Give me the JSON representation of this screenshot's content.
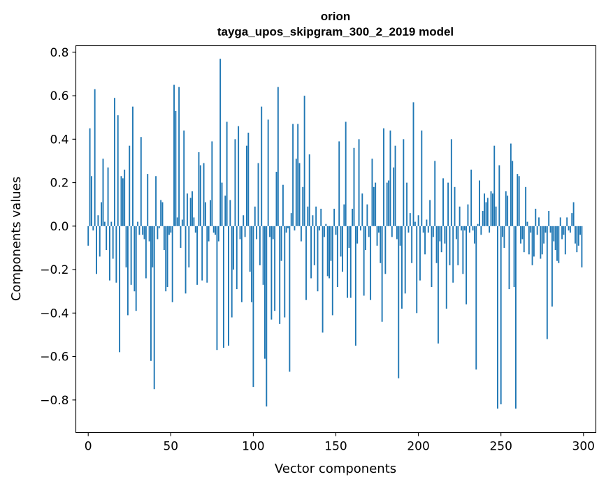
{
  "chart_data": {
    "type": "bar",
    "title": "orion",
    "subtitle": "tayga_upos_skipgram_300_2_2019 model",
    "xlabel": "Vector components",
    "ylabel": "Components values",
    "xlim": [
      -7.5,
      307.5
    ],
    "ylim": [
      -0.95,
      0.83
    ],
    "xticks": [
      0,
      50,
      100,
      150,
      200,
      250,
      300
    ],
    "xtick_labels": [
      "0",
      "50",
      "100",
      "150",
      "200",
      "250",
      "300"
    ],
    "yticks": [
      0.8,
      0.6,
      0.4,
      0.2,
      0.0,
      -0.2,
      -0.4,
      -0.6,
      -0.8
    ],
    "ytick_labels": [
      "0.8",
      "0.6",
      "0.4",
      "0.2",
      "0.0",
      "−0.2",
      "−0.4",
      "−0.6",
      "−0.8"
    ],
    "grid": false,
    "bar_color": "#1f77b4",
    "values": [
      -0.09,
      0.45,
      0.23,
      -0.02,
      0.63,
      -0.22,
      0.05,
      -0.14,
      0.11,
      0.31,
      0.02,
      -0.11,
      0.27,
      -0.25,
      0.02,
      -0.15,
      0.59,
      -0.26,
      0.51,
      -0.58,
      0.23,
      0.22,
      0.26,
      -0.19,
      -0.41,
      0.37,
      -0.27,
      0.55,
      -0.3,
      -0.39,
      0.02,
      -0.04,
      0.41,
      -0.04,
      -0.06,
      -0.24,
      0.24,
      -0.07,
      -0.62,
      -0.19,
      -0.75,
      0.23,
      -0.06,
      -0.01,
      0.12,
      0.11,
      -0.11,
      -0.3,
      -0.28,
      -0.04,
      -0.03,
      -0.35,
      0.65,
      0.53,
      0.04,
      0.64,
      -0.1,
      0.03,
      0.44,
      -0.31,
      0.15,
      -0.19,
      0.13,
      0.16,
      0.04,
      -0.03,
      -0.27,
      0.34,
      0.28,
      -0.25,
      0.29,
      0.11,
      -0.26,
      -0.07,
      0.12,
      0.39,
      -0.03,
      -0.04,
      -0.57,
      -0.07,
      0.77,
      0.2,
      -0.56,
      0.14,
      0.48,
      -0.55,
      0.12,
      -0.42,
      -0.2,
      0.4,
      -0.29,
      0.46,
      -0.06,
      -0.35,
      0.05,
      -0.05,
      0.37,
      0.43,
      -0.21,
      -0.35,
      -0.74,
      0.09,
      -0.06,
      0.29,
      -0.18,
      0.55,
      -0.27,
      -0.61,
      -0.83,
      0.49,
      -0.05,
      -0.43,
      -0.06,
      -0.39,
      0.25,
      0.64,
      -0.45,
      -0.16,
      0.19,
      -0.42,
      -0.03,
      -0.01,
      -0.67,
      0.06,
      0.47,
      -0.02,
      0.31,
      0.47,
      0.29,
      -0.07,
      0.18,
      0.6,
      -0.34,
      0.09,
      0.33,
      -0.24,
      0.05,
      -0.18,
      0.09,
      -0.3,
      -0.02,
      0.08,
      -0.49,
      -0.05,
      0.01,
      -0.23,
      -0.24,
      -0.16,
      -0.41,
      0.08,
      -0.04,
      -0.28,
      0.39,
      -0.14,
      -0.21,
      0.1,
      0.48,
      -0.33,
      -0.1,
      -0.33,
      0.08,
      0.36,
      -0.55,
      -0.08,
      0.4,
      -0.02,
      0.15,
      -0.32,
      -0.11,
      0.1,
      -0.05,
      -0.34,
      0.31,
      0.18,
      0.2,
      -0.09,
      -0.03,
      -0.17,
      -0.44,
      0.45,
      -0.22,
      0.2,
      0.21,
      0.44,
      -0.05,
      0.27,
      0.37,
      -0.06,
      -0.7,
      -0.09,
      -0.38,
      0.4,
      -0.31,
      0.2,
      -0.03,
      0.06,
      -0.17,
      0.57,
      0.02,
      -0.4,
      0.05,
      -0.25,
      0.44,
      -0.03,
      -0.13,
      0.03,
      -0.03,
      0.12,
      -0.28,
      -0.05,
      0.3,
      -0.17,
      -0.54,
      -0.07,
      -0.12,
      0.22,
      -0.08,
      -0.38,
      0.2,
      -0.18,
      0.4,
      -0.26,
      0.18,
      -0.06,
      -0.18,
      0.09,
      -0.02,
      -0.22,
      -0.02,
      -0.36,
      0.1,
      -0.03,
      0.26,
      -0.02,
      -0.08,
      -0.66,
      0.01,
      0.21,
      -0.04,
      0.07,
      0.15,
      0.11,
      0.13,
      -0.03,
      0.16,
      0.15,
      0.37,
      0.09,
      -0.84,
      0.28,
      -0.82,
      -0.05,
      -0.1,
      0.16,
      0.14,
      -0.29,
      0.38,
      0.3,
      -0.28,
      -0.84,
      0.24,
      0.23,
      -0.08,
      -0.06,
      -0.12,
      0.18,
      0.02,
      -0.13,
      -0.03,
      -0.18,
      -0.14,
      0.08,
      -0.04,
      0.04,
      -0.15,
      -0.13,
      -0.08,
      -0.03,
      -0.52,
      0.07,
      -0.03,
      -0.37,
      -0.07,
      -0.11,
      -0.16,
      -0.17,
      0.04,
      -0.06,
      -0.04,
      -0.13,
      0.04,
      -0.02,
      -0.03,
      0.06,
      0.11,
      -0.08,
      -0.12,
      -0.09,
      -0.04,
      -0.19
    ]
  }
}
